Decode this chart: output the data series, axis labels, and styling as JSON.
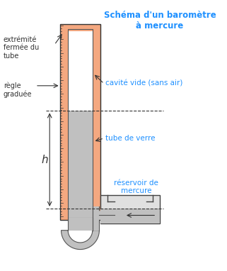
{
  "title": "Schéma d'un baromètre\nà mercure",
  "title_color": "#1E90FF",
  "bg_color": "#ffffff",
  "salmon_color": "#F4A880",
  "mercury_color": "#C0C0C0",
  "tube_bg": "#ffffff",
  "labels": {
    "extremite": "extrémité\nfermée du\ntube",
    "regle": "règle\ngraduée",
    "cavite": "cavité vide (sans air)",
    "tube_verre": "tube de verre",
    "reservoir": "réservoir de\nmercure",
    "h": "h"
  },
  "label_color": "#333333",
  "blue_label_color": "#1E90FF"
}
